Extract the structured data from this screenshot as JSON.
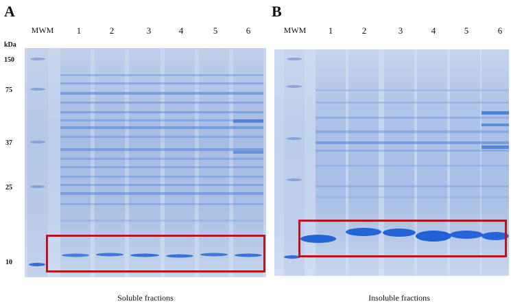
{
  "panels": [
    {
      "letter": "A",
      "marker_label": "MWM",
      "lanes": [
        "1",
        "2",
        "3",
        "4",
        "5",
        "6"
      ],
      "unit": "kDa",
      "mw_markers": [
        "150",
        "75",
        "37",
        "25",
        "10"
      ],
      "caption": "Soluble fractions",
      "highlight_color": "#b3161d"
    },
    {
      "letter": "B",
      "marker_label": "MWM",
      "lanes": [
        "1",
        "2",
        "3",
        "4",
        "5",
        "6"
      ],
      "caption": "Insoluble fractions",
      "highlight_color": "#b3161d"
    }
  ],
  "colors": {
    "gel_stain": "#2f6fd8",
    "highlight_box": "#b3161d"
  }
}
